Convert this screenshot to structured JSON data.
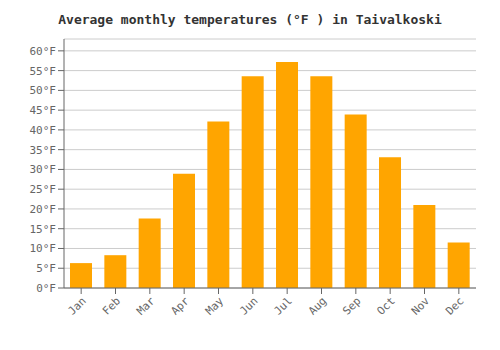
{
  "chart_data": {
    "type": "bar",
    "title": "Average monthly temperatures (°F ) in Taivalkoski",
    "categories": [
      "Jan",
      "Feb",
      "Mar",
      "Apr",
      "May",
      "Jun",
      "Jul",
      "Aug",
      "Sep",
      "Oct",
      "Nov",
      "Dec"
    ],
    "values": [
      6.3,
      8.3,
      17.6,
      28.9,
      42.1,
      53.6,
      57.2,
      53.6,
      43.9,
      33.1,
      21.0,
      11.5
    ],
    "color": "#FFA500",
    "ylim": [
      0,
      63
    ],
    "yticks": [
      {
        "value": 0,
        "label": "0°F"
      },
      {
        "value": 5,
        "label": "5°F"
      },
      {
        "value": 10,
        "label": "10°F"
      },
      {
        "value": 15,
        "label": "15°F"
      },
      {
        "value": 20,
        "label": "20°F"
      },
      {
        "value": 25,
        "label": "25°F"
      },
      {
        "value": 30,
        "label": "30°F"
      },
      {
        "value": 35,
        "label": "35°F"
      },
      {
        "value": 40,
        "label": "40°F"
      },
      {
        "value": 45,
        "label": "45°F"
      },
      {
        "value": 50,
        "label": "50°F"
      },
      {
        "value": 55,
        "label": "55°F"
      },
      {
        "value": 60,
        "label": "60°F"
      }
    ],
    "grid": true
  }
}
